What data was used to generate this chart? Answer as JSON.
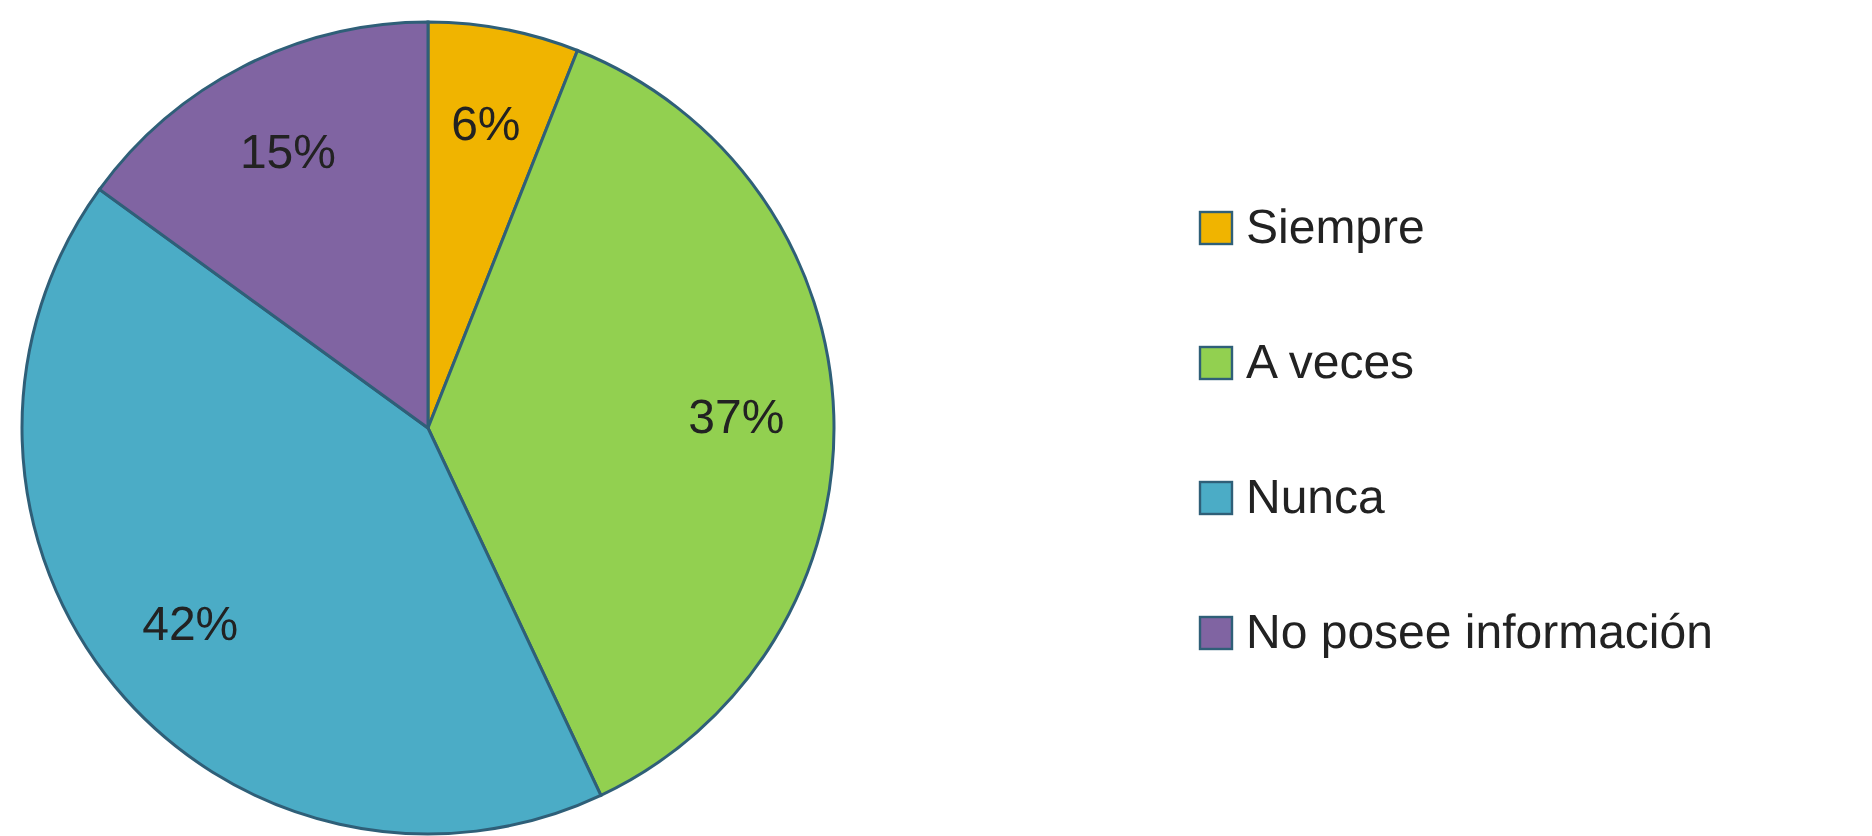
{
  "chart_data": {
    "type": "pie",
    "categories": [
      "Siempre",
      "A veces",
      "Nunca",
      "No posee información"
    ],
    "values": [
      6,
      37,
      42,
      15
    ],
    "colors": [
      "#f0b400",
      "#92d050",
      "#4bacc6",
      "#8064a2"
    ],
    "value_labels": [
      "6%",
      "37%",
      "42%",
      "15%"
    ],
    "legend": "right"
  }
}
